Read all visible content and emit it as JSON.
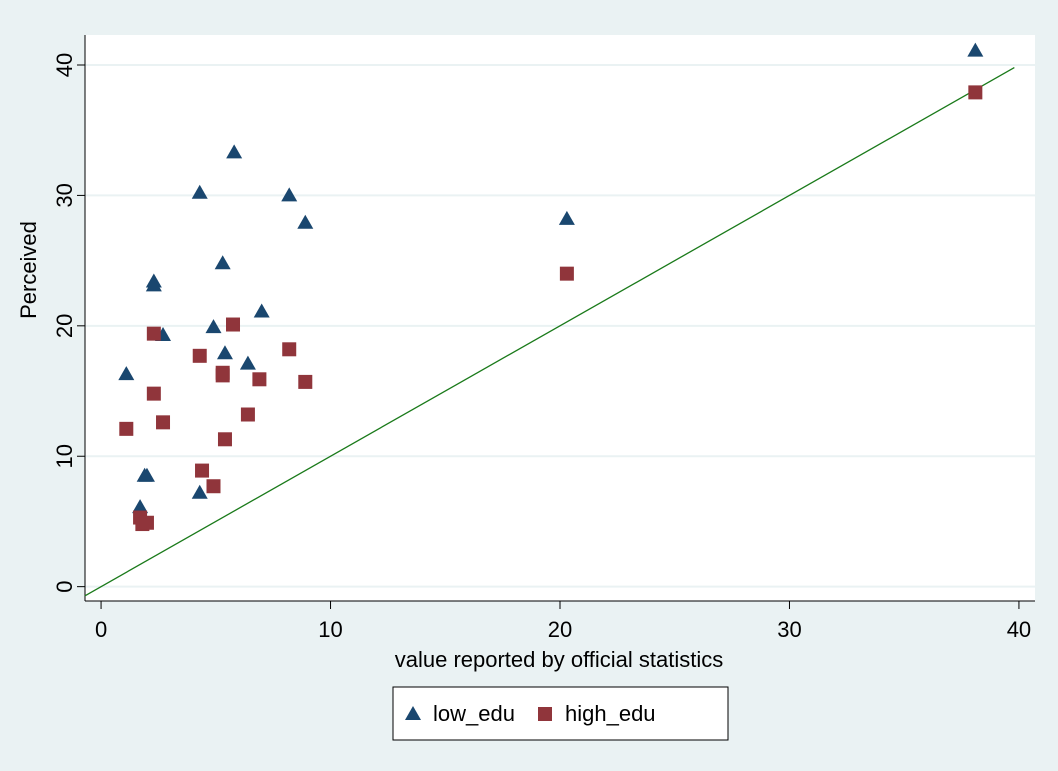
{
  "chart_data": {
    "type": "scatter",
    "x_label": "value reported by official statistics",
    "y_label": "Perceived",
    "xlim": [
      -0.7,
      40.7
    ],
    "ylim": [
      -1.1,
      42.3
    ],
    "xticks": [
      0,
      10,
      20,
      30,
      40
    ],
    "yticks": [
      0,
      10,
      20,
      30,
      40
    ],
    "grid": true,
    "legend": "bottom",
    "reference_line": {
      "x": [
        -0.7,
        39.8
      ],
      "y": [
        -0.7,
        39.8
      ],
      "color": "#1a7a1a"
    },
    "series": [
      {
        "name": "low_edu",
        "color": "#1a476f",
        "marker": "triangle",
        "x": [
          38.1,
          5.8,
          4.3,
          8.2,
          8.9,
          20.3,
          5.3,
          2.3,
          2.3,
          7.0,
          4.9,
          2.7,
          1.1,
          5.4,
          6.4,
          1.9,
          2.0,
          1.7,
          4.3
        ],
        "values": [
          41.1,
          33.3,
          30.2,
          30.0,
          27.9,
          28.2,
          24.8,
          23.4,
          23.1,
          21.1,
          19.9,
          19.3,
          16.3,
          17.9,
          17.1,
          8.5,
          8.5,
          6.1,
          7.2
        ]
      },
      {
        "name": "high_edu",
        "color": "#90353b",
        "marker": "square",
        "x": [
          38.1,
          20.3,
          5.75,
          2.3,
          4.3,
          8.2,
          5.3,
          5.3,
          6.9,
          8.9,
          2.3,
          2.7,
          1.1,
          6.4,
          5.4,
          4.4,
          4.9,
          1.7,
          1.8,
          2.0
        ],
        "values": [
          37.9,
          24.0,
          20.1,
          19.4,
          17.7,
          18.2,
          16.4,
          16.2,
          15.9,
          15.7,
          14.8,
          12.6,
          12.1,
          13.2,
          11.3,
          8.9,
          7.7,
          5.3,
          4.8,
          4.9
        ]
      }
    ]
  }
}
